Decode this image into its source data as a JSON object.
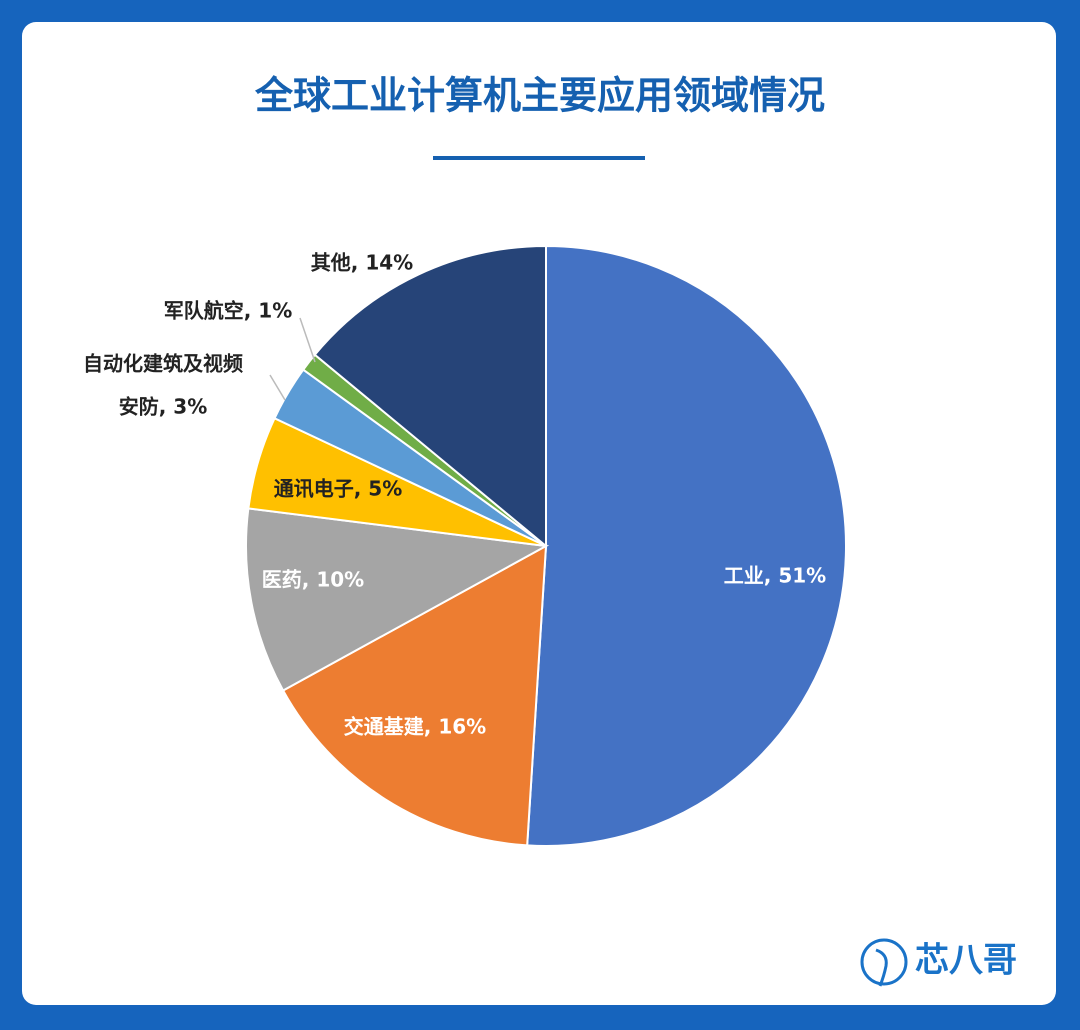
{
  "chart_data": {
    "type": "pie",
    "title": "全球工业计算机主要应用领域情况",
    "values": [
      51,
      16,
      10,
      5,
      3,
      1,
      14
    ],
    "value_labels": [
      [
        "工业, 51%"
      ],
      [
        "交通基建, 16%"
      ],
      [
        "医药, 10%"
      ],
      [
        "通讯电子, 5%"
      ],
      [
        "自动化建筑及视频",
        "安防, 3%"
      ],
      [
        "军队航空, 1%"
      ],
      [
        "其他, 14%"
      ]
    ],
    "colors": [
      "#4472c4",
      "#ed7d31",
      "#a5a5a5",
      "#ffc000",
      "#5b9bd5",
      "#70ad47",
      "#264478"
    ]
  },
  "brand": "芯八哥"
}
